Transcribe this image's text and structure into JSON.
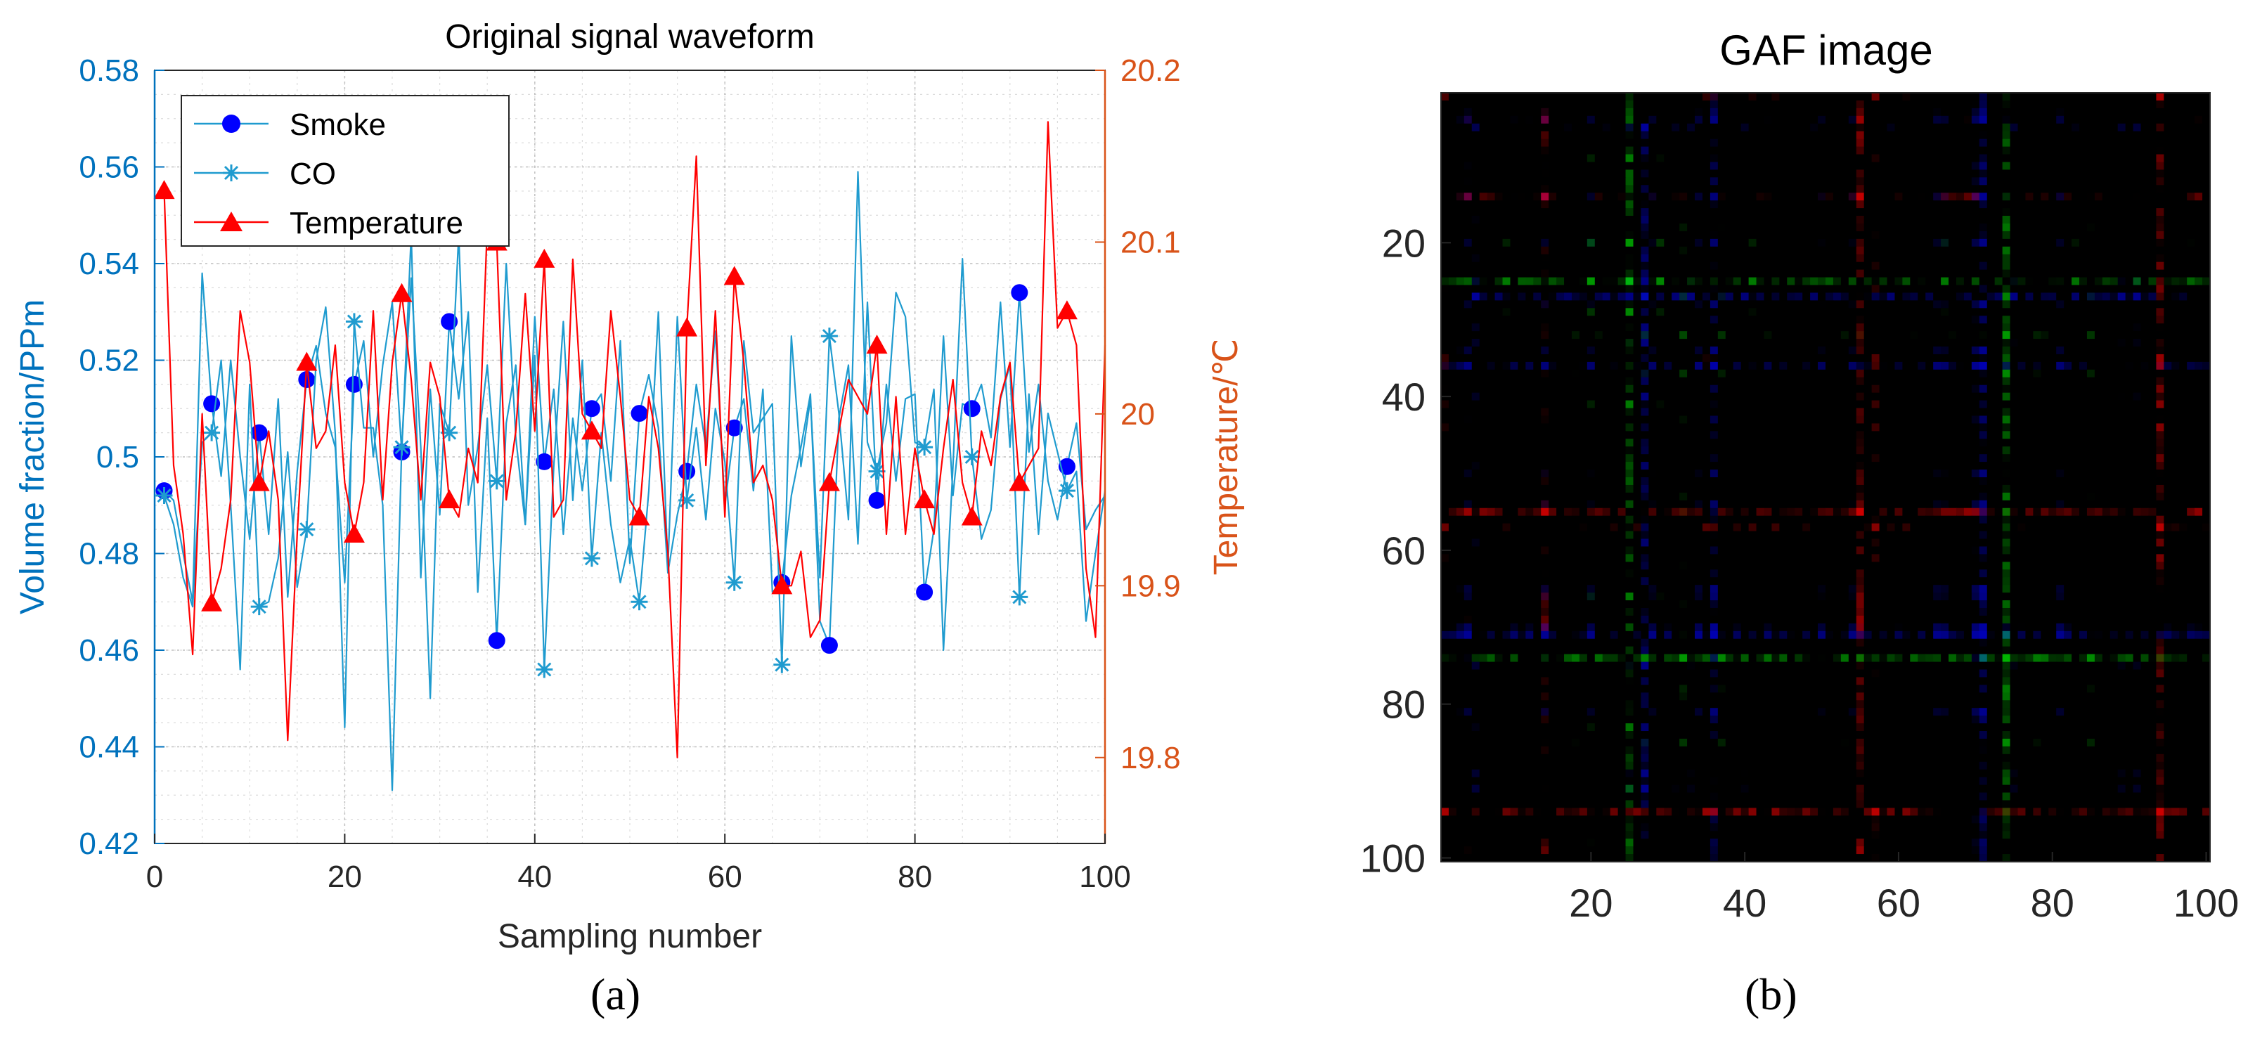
{
  "chart_data": [
    {
      "type": "line",
      "title": "Original signal waveform",
      "xlabel": "Sampling number",
      "ylabel": "Volume fraction/PPm",
      "ylabel_right": "Temperature/℃",
      "xlim": [
        0,
        100
      ],
      "ylim": [
        0.42,
        0.58
      ],
      "ylim_right": [
        19.75,
        20.2
      ],
      "x_ticks": [
        0,
        20,
        40,
        60,
        80,
        100
      ],
      "y_ticks": [
        0.42,
        0.44,
        0.46,
        0.48,
        0.5,
        0.52,
        0.54,
        0.56,
        0.58
      ],
      "y_tick_labels": [
        "0.42",
        "0.44",
        "0.46",
        "0.48",
        "0.5",
        "0.52",
        "0.54",
        "0.56",
        "0.58"
      ],
      "y_ticks_right": [
        19.8,
        19.9,
        20,
        20.1,
        20.2
      ],
      "y_tick_labels_right": [
        "19.8",
        "19.9",
        "20",
        "20.1",
        "20.2"
      ],
      "grid": true,
      "minor_grid": true,
      "legend_position": "top-left",
      "colors": {
        "left_axis": "#0072BD",
        "right_axis": "#D95319",
        "smoke": "#0000FF",
        "co": "#1F9BCF",
        "temperature": "#FF0000"
      },
      "series": [
        {
          "name": "Smoke",
          "axis": "left",
          "marker": "circle",
          "values": [
            0.493,
            0.491,
            0.48,
            0.47,
            0.538,
            0.511,
            0.496,
            0.52,
            0.5,
            0.483,
            0.505,
            0.484,
            0.512,
            0.471,
            0.497,
            0.516,
            0.523,
            0.509,
            0.502,
            0.474,
            0.515,
            0.524,
            0.5,
            0.519,
            0.532,
            0.501,
            0.546,
            0.475,
            0.514,
            0.488,
            0.528,
            0.512,
            0.53,
            0.472,
            0.508,
            0.462,
            0.507,
            0.519,
            0.486,
            0.529,
            0.499,
            0.514,
            0.484,
            0.508,
            0.493,
            0.51,
            0.513,
            0.495,
            0.524,
            0.478,
            0.509,
            0.517,
            0.506,
            0.476,
            0.488,
            0.497,
            0.515,
            0.502,
            0.526,
            0.49,
            0.506,
            0.512,
            0.493,
            0.514,
            0.472,
            0.474,
            0.492,
            0.502,
            0.513,
            0.466,
            0.461,
            0.508,
            0.519,
            0.482,
            0.532,
            0.491,
            0.515,
            0.495,
            0.512,
            0.513,
            0.472,
            0.485,
            0.525,
            0.492,
            0.511,
            0.51,
            0.515,
            0.504,
            0.532,
            0.502,
            0.534,
            0.501,
            0.515,
            0.495,
            0.487,
            0.498,
            0.507,
            0.485,
            0.489,
            0.492
          ],
          "marker_every": 5,
          "marker_start": 1
        },
        {
          "name": "CO",
          "axis": "left",
          "marker": "asterisk",
          "values": [
            0.492,
            0.486,
            0.475,
            0.469,
            0.503,
            0.505,
            0.52,
            0.49,
            0.456,
            0.515,
            0.469,
            0.47,
            0.479,
            0.501,
            0.473,
            0.485,
            0.52,
            0.531,
            0.505,
            0.444,
            0.528,
            0.506,
            0.506,
            0.49,
            0.431,
            0.502,
            0.537,
            0.502,
            0.45,
            0.511,
            0.505,
            0.546,
            0.49,
            0.502,
            0.519,
            0.495,
            0.54,
            0.504,
            0.486,
            0.521,
            0.456,
            0.498,
            0.528,
            0.491,
            0.52,
            0.479,
            0.505,
            0.486,
            0.474,
            0.483,
            0.47,
            0.493,
            0.53,
            0.477,
            0.529,
            0.491,
            0.506,
            0.487,
            0.51,
            0.499,
            0.474,
            0.524,
            0.505,
            0.508,
            0.511,
            0.457,
            0.525,
            0.498,
            0.512,
            0.475,
            0.525,
            0.509,
            0.487,
            0.559,
            0.503,
            0.497,
            0.507,
            0.534,
            0.529,
            0.503,
            0.502,
            0.514,
            0.46,
            0.498,
            0.541,
            0.5,
            0.483,
            0.489,
            0.512,
            0.519,
            0.471,
            0.513,
            0.484,
            0.509,
            0.501,
            0.493,
            0.497,
            0.466,
            0.48,
            0.493
          ],
          "marker_every": 5,
          "marker_start": 1
        },
        {
          "name": "Temperature",
          "axis": "right",
          "marker": "triangle",
          "values": [
            20.13,
            19.97,
            19.93,
            19.86,
            20.0,
            19.89,
            19.91,
            19.95,
            20.06,
            20.03,
            19.96,
            19.99,
            19.95,
            19.81,
            19.93,
            20.03,
            19.98,
            19.99,
            20.04,
            19.96,
            19.93,
            19.96,
            20.06,
            19.95,
            20.03,
            20.07,
            20.02,
            19.95,
            20.03,
            20.01,
            19.95,
            19.94,
            19.98,
            19.96,
            20.11,
            20.1,
            19.95,
            19.99,
            20.07,
            19.99,
            20.09,
            19.94,
            19.95,
            20.09,
            20.0,
            19.99,
            19.98,
            20.06,
            20.01,
            19.95,
            19.94,
            20.01,
            19.98,
            19.92,
            19.8,
            20.05,
            20.15,
            19.97,
            20.06,
            19.94,
            20.08,
            20.03,
            19.96,
            19.97,
            19.95,
            19.9,
            19.9,
            19.92,
            19.87,
            19.88,
            19.96,
            19.99,
            20.02,
            20.01,
            20.0,
            20.04,
            19.93,
            20.01,
            19.93,
            19.98,
            19.95,
            19.93,
            19.98,
            20.02,
            19.96,
            19.94,
            19.99,
            19.97,
            20.01,
            20.03,
            19.96,
            19.97,
            19.98,
            20.17,
            20.05,
            20.06,
            20.04,
            19.91,
            19.87,
            20.04
          ],
          "marker_every": 5,
          "marker_start": 1
        }
      ]
    },
    {
      "type": "heatmap",
      "title": "GAF image",
      "x_ticks": [
        20,
        40,
        60,
        80,
        100
      ],
      "y_ticks": [
        20,
        40,
        60,
        80,
        100
      ],
      "xlim": [
        1,
        100
      ],
      "ylim": [
        1,
        100
      ],
      "y_direction": "down"
    }
  ],
  "panels": {
    "a": "(a)",
    "b": "(b)"
  }
}
